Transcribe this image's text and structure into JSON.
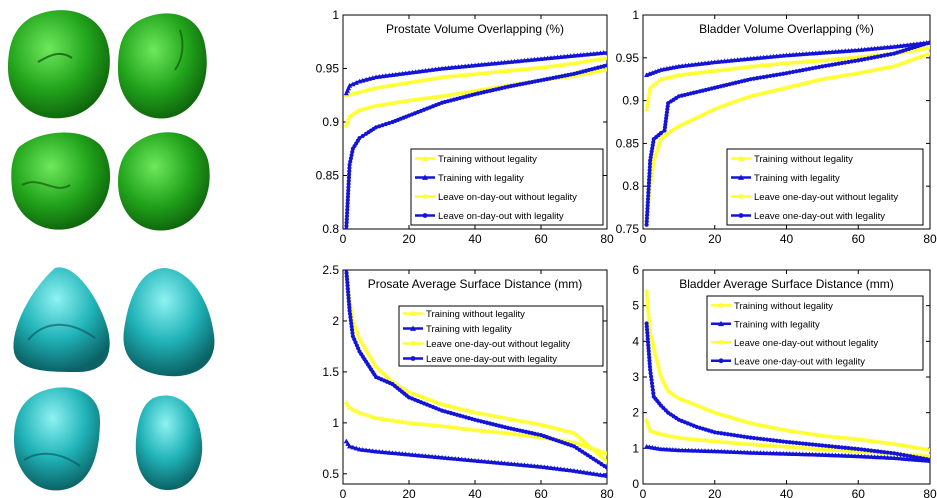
{
  "shape_colors": {
    "prostate": "#22a51c",
    "bladder": "#20b3b8"
  },
  "legend_colors": {
    "yellow": "#ffff33",
    "blue": "#1414d8"
  },
  "chart_data": [
    {
      "type": "line",
      "title": "Prostate Volume Overlapping (%)",
      "xlim": [
        0,
        80
      ],
      "ylim": [
        0.8,
        1
      ],
      "xticks": [
        "0",
        "20",
        "40",
        "60",
        "80"
      ],
      "yticks": [
        "0.8",
        "0.85",
        "0.9",
        "0.95",
        "1"
      ],
      "series": [
        {
          "name": "Training without legality",
          "color": "#ffff33",
          "marker": "triangle",
          "x": [
            1,
            5,
            10,
            20,
            30,
            40,
            50,
            60,
            70,
            80
          ],
          "y": [
            0.925,
            0.928,
            0.932,
            0.937,
            0.942,
            0.945,
            0.948,
            0.951,
            0.955,
            0.96
          ]
        },
        {
          "name": "Training with legality",
          "color": "#1414d8",
          "marker": "triangle",
          "x": [
            1,
            2,
            5,
            10,
            20,
            30,
            40,
            50,
            60,
            70,
            80
          ],
          "y": [
            0.927,
            0.934,
            0.938,
            0.942,
            0.946,
            0.95,
            0.953,
            0.956,
            0.959,
            0.962,
            0.965
          ]
        },
        {
          "name": "Leave on-day-out without legality",
          "color": "#ffff33",
          "marker": "circle",
          "x": [
            1,
            2,
            5,
            10,
            20,
            30,
            40,
            50,
            60,
            70,
            80
          ],
          "y": [
            0.896,
            0.905,
            0.911,
            0.915,
            0.92,
            0.924,
            0.929,
            0.934,
            0.939,
            0.943,
            0.949
          ]
        },
        {
          "name": "Leave on-day-out with legality",
          "color": "#1414d8",
          "marker": "circle",
          "x": [
            1,
            2,
            3,
            5,
            7,
            10,
            15,
            20,
            30,
            40,
            50,
            60,
            70,
            80
          ],
          "y": [
            0.8,
            0.86,
            0.875,
            0.885,
            0.889,
            0.895,
            0.9,
            0.906,
            0.918,
            0.926,
            0.933,
            0.939,
            0.945,
            0.953
          ]
        }
      ]
    },
    {
      "type": "line",
      "title": "Bladder Volume Overlapping (%)",
      "xlim": [
        0,
        80
      ],
      "ylim": [
        0.75,
        1
      ],
      "xticks": [
        "0",
        "20",
        "40",
        "60",
        "80"
      ],
      "yticks": [
        "0.75",
        "0.8",
        "0.85",
        "0.9",
        "0.95",
        "1"
      ],
      "series": [
        {
          "name": "Training without legality",
          "color": "#ffff33",
          "marker": "triangle",
          "x": [
            1,
            2,
            5,
            10,
            20,
            30,
            40,
            50,
            60,
            70,
            80
          ],
          "y": [
            0.89,
            0.915,
            0.925,
            0.93,
            0.935,
            0.94,
            0.944,
            0.947,
            0.951,
            0.955,
            0.962
          ]
        },
        {
          "name": "Training with legality",
          "color": "#1414d8",
          "marker": "triangle",
          "x": [
            1,
            5,
            10,
            20,
            30,
            40,
            50,
            60,
            70,
            80
          ],
          "y": [
            0.93,
            0.936,
            0.94,
            0.945,
            0.949,
            0.953,
            0.956,
            0.959,
            0.963,
            0.968
          ]
        },
        {
          "name": "Leave one-day-out without legality",
          "color": "#ffff33",
          "marker": "circle",
          "x": [
            1,
            2,
            3,
            5,
            7,
            10,
            15,
            20,
            25,
            30,
            40,
            50,
            60,
            70,
            80
          ],
          "y": [
            0.76,
            0.8,
            0.83,
            0.855,
            0.862,
            0.87,
            0.88,
            0.89,
            0.898,
            0.905,
            0.915,
            0.925,
            0.932,
            0.94,
            0.955
          ]
        },
        {
          "name": "Leave one-day-out with legality",
          "color": "#1414d8",
          "marker": "circle",
          "x": [
            1,
            2,
            3,
            5,
            6,
            7,
            10,
            15,
            20,
            30,
            40,
            50,
            60,
            70,
            80
          ],
          "y": [
            0.755,
            0.83,
            0.855,
            0.862,
            0.865,
            0.897,
            0.905,
            0.91,
            0.915,
            0.925,
            0.932,
            0.94,
            0.947,
            0.955,
            0.968
          ]
        }
      ]
    },
    {
      "type": "line",
      "title": "Prosate Average Surface Distance (mm)",
      "xlim": [
        0,
        80
      ],
      "ylim": [
        0.4,
        2.5
      ],
      "xticks": [
        "0",
        "20",
        "40",
        "60",
        "80"
      ],
      "yticks": [
        "0.5",
        "1",
        "1.5",
        "2",
        "2.5"
      ],
      "series": [
        {
          "name": "Training without legality",
          "color": "#ffff33",
          "marker": "triangle",
          "x": [
            1,
            2,
            5,
            10,
            20,
            30,
            40,
            50,
            60,
            70,
            80
          ],
          "y": [
            1.2,
            1.15,
            1.1,
            1.05,
            1.0,
            0.97,
            0.93,
            0.9,
            0.86,
            0.81,
            0.7
          ]
        },
        {
          "name": "Training with legality",
          "color": "#1414d8",
          "marker": "triangle",
          "x": [
            1,
            2,
            5,
            10,
            20,
            30,
            40,
            50,
            60,
            70,
            80
          ],
          "y": [
            0.82,
            0.77,
            0.74,
            0.72,
            0.69,
            0.66,
            0.63,
            0.6,
            0.57,
            0.53,
            0.48
          ]
        },
        {
          "name": "Leave one-day-out without legality",
          "color": "#ffff33",
          "marker": "circle",
          "x": [
            1,
            2,
            3,
            5,
            10,
            15,
            20,
            30,
            40,
            50,
            60,
            70,
            80
          ],
          "y": [
            2.5,
            2.2,
            2.0,
            1.82,
            1.55,
            1.4,
            1.3,
            1.18,
            1.1,
            1.04,
            0.98,
            0.9,
            0.62
          ]
        },
        {
          "name": "Leave one-day-out with legality",
          "color": "#1414d8",
          "marker": "circle",
          "x": [
            1,
            2,
            3,
            5,
            7,
            10,
            15,
            20,
            30,
            40,
            50,
            60,
            70,
            80
          ],
          "y": [
            2.5,
            2.1,
            1.85,
            1.7,
            1.6,
            1.45,
            1.38,
            1.25,
            1.12,
            1.03,
            0.95,
            0.88,
            0.77,
            0.56
          ]
        }
      ]
    },
    {
      "type": "line",
      "title": "Bladder Average Surface Distance (mm)",
      "xlim": [
        0,
        80
      ],
      "ylim": [
        0,
        6
      ],
      "xticks": [
        "0",
        "20",
        "40",
        "60",
        "80"
      ],
      "yticks": [
        "0",
        "1",
        "2",
        "3",
        "4",
        "5",
        "6"
      ],
      "series": [
        {
          "name": "Training without legality",
          "color": "#ffff33",
          "marker": "triangle",
          "x": [
            1,
            2,
            5,
            10,
            20,
            30,
            40,
            50,
            60,
            70,
            80
          ],
          "y": [
            1.8,
            1.5,
            1.4,
            1.3,
            1.2,
            1.12,
            1.05,
            0.98,
            0.92,
            0.86,
            0.78
          ]
        },
        {
          "name": "Training with legality",
          "color": "#1414d8",
          "marker": "triangle",
          "x": [
            1,
            5,
            10,
            20,
            30,
            40,
            50,
            60,
            70,
            80
          ],
          "y": [
            1.05,
            0.98,
            0.95,
            0.92,
            0.88,
            0.85,
            0.82,
            0.78,
            0.73,
            0.65
          ]
        },
        {
          "name": "Leave one-day-out without legality",
          "color": "#ffff33",
          "marker": "circle",
          "x": [
            1,
            2,
            3,
            5,
            7,
            10,
            15,
            20,
            30,
            40,
            50,
            60,
            70,
            80
          ],
          "y": [
            5.4,
            4.2,
            3.8,
            3.0,
            2.6,
            2.4,
            2.2,
            2.0,
            1.7,
            1.5,
            1.35,
            1.25,
            1.12,
            0.95
          ]
        },
        {
          "name": "Leave one-day-out with legality",
          "color": "#1414d8",
          "marker": "circle",
          "x": [
            1,
            2,
            3,
            5,
            7,
            10,
            15,
            20,
            30,
            40,
            50,
            60,
            70,
            80
          ],
          "y": [
            4.5,
            3.2,
            2.45,
            2.2,
            2.0,
            1.8,
            1.6,
            1.45,
            1.3,
            1.18,
            1.08,
            0.98,
            0.86,
            0.68
          ]
        }
      ]
    }
  ]
}
